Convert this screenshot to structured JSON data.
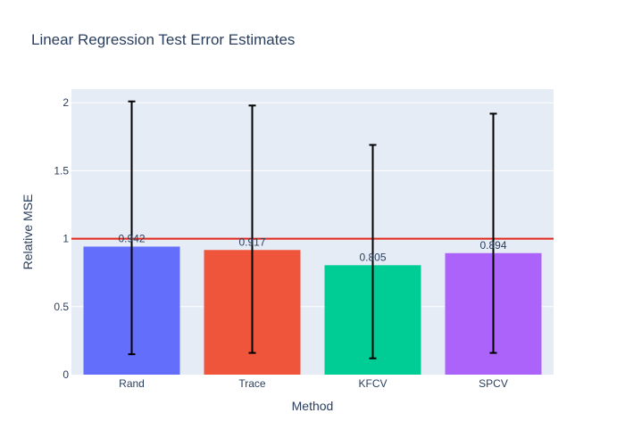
{
  "colors": {
    "plot_background": "#e5ecf6",
    "grid": "#ffffff",
    "text": "#2a3f5f",
    "reference_line": "#e3271b",
    "error_bar": "#000000"
  },
  "chart_data": {
    "type": "bar",
    "title": "Linear Regression Test Error Estimates",
    "xlabel": "Method",
    "ylabel": "Relative MSE",
    "categories": [
      "Rand",
      "Trace",
      "KFCV",
      "SPCV"
    ],
    "values": [
      0.942,
      0.917,
      0.805,
      0.894
    ],
    "value_labels": [
      "0.942",
      "0.917",
      "0.805",
      "0.894"
    ],
    "bar_colors": [
      "#636efa",
      "#ef553b",
      "#00cc96",
      "#ab63fa"
    ],
    "error_bars": {
      "upper": [
        2.01,
        1.98,
        1.69,
        1.92
      ],
      "lower": [
        0.15,
        0.16,
        0.12,
        0.16
      ]
    },
    "reference_line": {
      "y": 1.0
    },
    "ylim": [
      0,
      2.1
    ],
    "yticks": [
      0,
      0.5,
      1,
      1.5,
      2
    ],
    "ytick_labels": [
      "0",
      "0.5",
      "1",
      "1.5",
      "2"
    ],
    "grid": true
  }
}
